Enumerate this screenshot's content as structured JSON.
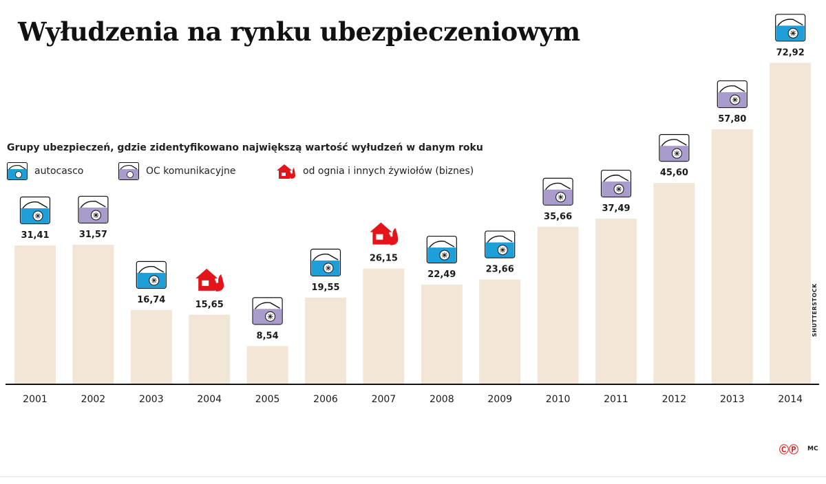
{
  "title": "Wyłudzenia na rynku ubezpieczeniowym",
  "subtitle": "Grupy ubezpieczeń, gdzie zidentyfikowano największą wartość wyłudzeń w danym roku",
  "legend": [
    {
      "key": "autocasco",
      "label": "autocasco",
      "icon": "blue-car-icon",
      "color": "#1f9fd8"
    },
    {
      "key": "oc",
      "label": "OC komunikacyjne",
      "icon": "purple-car-icon",
      "color": "#a79ccc"
    },
    {
      "key": "fire",
      "label": "od ognia i innych żywiołów (biznes)",
      "icon": "house-fire-icon",
      "color": "#e3151a"
    }
  ],
  "credit": "SHUTTERSTOCK",
  "logo": "ⒸⓅ",
  "author": "MC",
  "chart_data": {
    "type": "bar",
    "title": "Wyłudzenia na rynku ubezpieczeniowym",
    "xlabel": "",
    "ylabel": "",
    "ylim": [
      0,
      75
    ],
    "grid": false,
    "bar_color": "#f2e6d7",
    "categories": [
      "2001",
      "2002",
      "2003",
      "2004",
      "2005",
      "2006",
      "2007",
      "2008",
      "2009",
      "2010",
      "2011",
      "2012",
      "2013",
      "2014"
    ],
    "values": [
      31.41,
      31.57,
      16.74,
      15.65,
      8.54,
      19.55,
      26.15,
      22.49,
      23.66,
      35.66,
      37.49,
      45.6,
      57.8,
      72.92
    ],
    "value_labels": [
      "31,41",
      "31,57",
      "16,74",
      "15,65",
      "8,54",
      "19,55",
      "26,15",
      "22,49",
      "23,66",
      "35,66",
      "37,49",
      "45,60",
      "57,80",
      "72,92"
    ],
    "groups": [
      "autocasco",
      "oc",
      "autocasco",
      "fire",
      "oc",
      "autocasco",
      "fire",
      "autocasco",
      "autocasco",
      "oc",
      "oc",
      "oc",
      "oc",
      "autocasco"
    ]
  }
}
